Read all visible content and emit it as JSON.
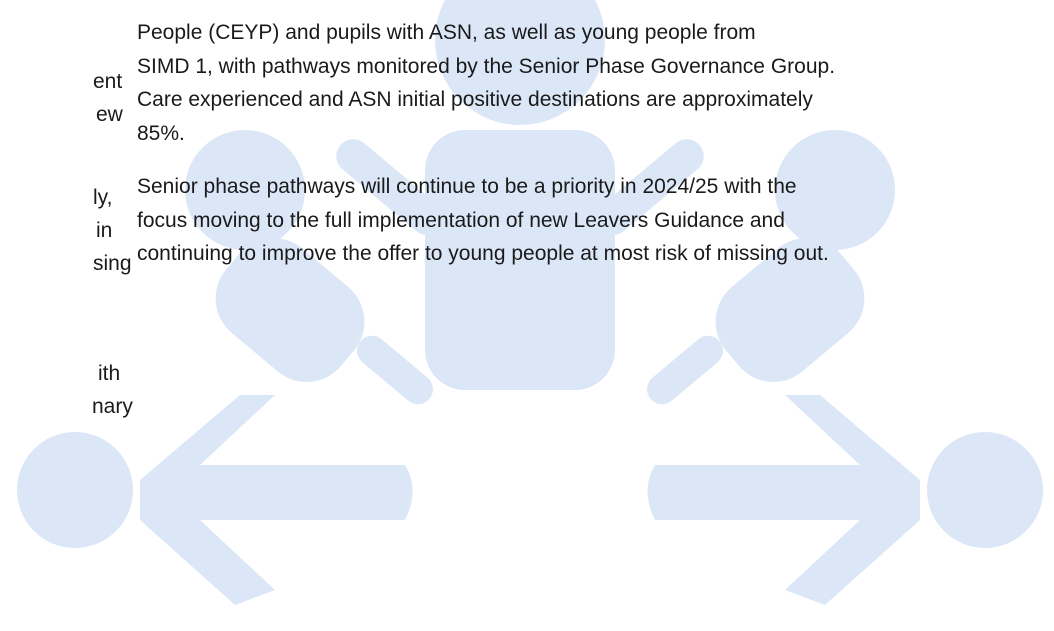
{
  "left_fragments": [
    "ent",
    "ew",
    "ly,",
    "in",
    "sing",
    "ith",
    "nary"
  ],
  "paragraphs": [
    {
      "lines": [
        "People (CEYP) and pupils with ASN, as well as young people from",
        "SIMD 1, with pathways monitored by the Senior Phase Governance Group.",
        "Care experienced and ASN initial positive destinations are approximately",
        "85%."
      ]
    },
    {
      "lines": [
        "Senior phase pathways will continue to be a priority in 2024/25 with the",
        "focus moving to the full implementation of new Leavers Guidance and",
        "continuing to improve the offer to young people at most risk of missing out."
      ]
    }
  ]
}
